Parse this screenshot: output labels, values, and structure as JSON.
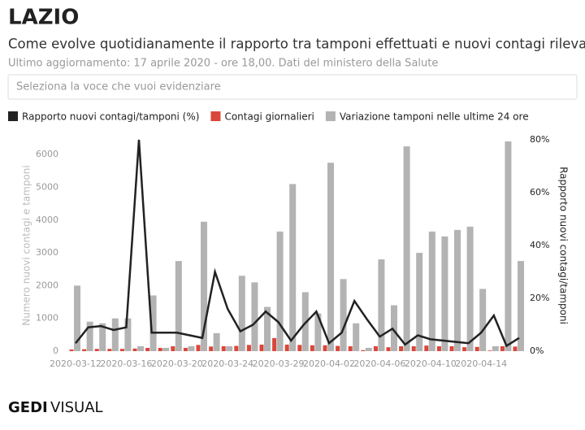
{
  "header": {
    "title": "LAZIO",
    "subtitle": "Come evolve quotidianamente il rapporto tra tamponi effettuati e nuovi contagi rilevati",
    "note": "Ultimo aggiornamento: 17 aprile 2020 - ore 18,00. Dati del ministero della Salute",
    "search_placeholder": "Seleziona la voce che vuoi evidenziare"
  },
  "footer": {
    "logo_left": "GEDI",
    "logo_right": "VISUAL"
  },
  "chart_data": {
    "type": "bar",
    "categories": [
      "2020-03-12",
      null,
      null,
      null,
      "2020-03-16",
      null,
      null,
      null,
      "2020-03-20",
      null,
      null,
      null,
      "2020-03-24",
      null,
      null,
      null,
      "2020-03-29",
      null,
      null,
      null,
      "2020-04-02",
      null,
      null,
      null,
      "2020-04-06",
      null,
      null,
      null,
      "2020-04-10",
      null,
      null,
      null,
      "2020-04-14",
      null,
      null,
      null
    ],
    "series": [
      {
        "name": "Rapporto nuovi contagi/tamponi (%)",
        "color": "#222222",
        "type": "line",
        "axis": "y2",
        "values": [
          3,
          9,
          9.5,
          8,
          9,
          80,
          7,
          7,
          7,
          6,
          5,
          30,
          16,
          7.5,
          10,
          15,
          11,
          4,
          10,
          15,
          3,
          7,
          19,
          12,
          5.5,
          8.5,
          2.5,
          6,
          4.5,
          4,
          3.5,
          3,
          7,
          13.5,
          2,
          5
        ]
      },
      {
        "name": "Contagi giornalieri",
        "color": "#d9473b",
        "type": "bar",
        "values": [
          50,
          60,
          70,
          70,
          70,
          80,
          100,
          100,
          150,
          100,
          190,
          140,
          150,
          160,
          190,
          200,
          400,
          200,
          190,
          180,
          180,
          160,
          150,
          30,
          150,
          120,
          150,
          150,
          170,
          150,
          150,
          120,
          130,
          20,
          150,
          140
        ]
      },
      {
        "name": "Variazione tamponi nelle ultime 24 ore",
        "color": "#b3b3b3",
        "type": "bar",
        "values": [
          2000,
          900,
          850,
          1000,
          1000,
          150,
          1700,
          100,
          2750,
          150,
          3950,
          550,
          150,
          2300,
          2100,
          1350,
          3650,
          5100,
          1800,
          1150,
          5750,
          2200,
          850,
          100,
          2800,
          1400,
          6250,
          3000,
          3650,
          3500,
          3700,
          3800,
          1900,
          150,
          6400,
          2750
        ]
      }
    ],
    "y_label": "Numero nuovi contagi e tamponi",
    "y2_label": "Rapporto nuovi contagi/tamponi",
    "ylim": [
      0,
      6450
    ],
    "yticks": [
      0,
      1000,
      2000,
      3000,
      4000,
      5000,
      6000
    ],
    "y2lim": [
      0,
      80
    ],
    "y2ticks": [
      {
        "value": 0,
        "label": "0%"
      },
      {
        "value": 20,
        "label": "20%"
      },
      {
        "value": 40,
        "label": "40%"
      },
      {
        "value": 60,
        "label": "60%"
      },
      {
        "value": 80,
        "label": "80%"
      }
    ]
  }
}
